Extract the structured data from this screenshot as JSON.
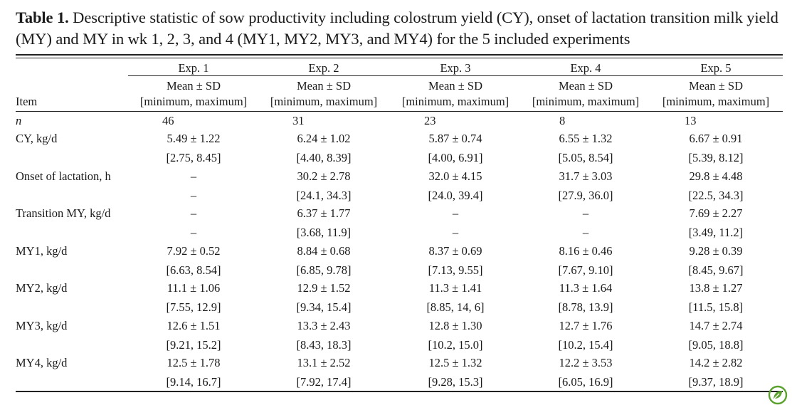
{
  "caption": {
    "label": "Table 1.",
    "text": " Descriptive statistic of sow productivity including colostrum yield (CY), onset of lactation transition milk yield (MY) and MY in wk 1, 2, 3, and 4 (MY1, MY2, MY3, and MY4) for the 5 included experiments"
  },
  "table": {
    "item_header": "Item",
    "experiments": [
      {
        "name": "Exp. 1",
        "stat_label": "Mean ± SD",
        "range_label": "[minimum, maximum]"
      },
      {
        "name": "Exp. 2",
        "stat_label": "Mean ± SD",
        "range_label": "[minimum, maximum]"
      },
      {
        "name": "Exp. 3",
        "stat_label": "Mean ± SD",
        "range_label": "[minimum, maximum]"
      },
      {
        "name": "Exp. 4",
        "stat_label": "Mean ± SD",
        "range_label": "[minimum, maximum]"
      },
      {
        "name": "Exp. 5",
        "stat_label": "Mean ± SD",
        "range_label": "[minimum, maximum]"
      }
    ],
    "n_row": {
      "label": "n",
      "values": [
        "46",
        "31",
        "23",
        "8",
        "13"
      ]
    },
    "rows": [
      {
        "label": "CY, kg/d",
        "mean": [
          "5.49 ± 1.22",
          "6.24 ± 1.02",
          "5.87 ± 0.74",
          "6.55 ± 1.32",
          "6.67 ± 0.91"
        ],
        "range": [
          "[2.75, 8.45]",
          "[4.40, 8.39]",
          "[4.00, 6.91]",
          "[5.05, 8.54]",
          "[5.39, 8.12]"
        ]
      },
      {
        "label": "Onset of lactation, h",
        "mean": [
          "–",
          "30.2 ± 2.78",
          "32.0 ± 4.15",
          "31.7 ± 3.03",
          "29.8 ± 4.48"
        ],
        "range": [
          "–",
          "[24.1, 34.3]",
          "[24.0, 39.4]",
          "[27.9, 36.0]",
          "[22.5, 34.3]"
        ]
      },
      {
        "label": "Transition MY, kg/d",
        "mean": [
          "–",
          "6.37 ± 1.77",
          "–",
          "–",
          "7.69 ± 2.27"
        ],
        "range": [
          "–",
          "[3.68, 11.9]",
          "–",
          "–",
          "[3.49, 11.2]"
        ]
      },
      {
        "label": "MY1, kg/d",
        "mean": [
          "7.92 ± 0.52",
          "8.84 ± 0.68",
          "8.37 ± 0.69",
          "8.16 ± 0.46",
          "9.28 ± 0.39"
        ],
        "range": [
          "[6.63, 8.54]",
          "[6.85, 9.78]",
          "[7.13, 9.55]",
          "[7.67, 9.10]",
          "[8.45, 9.67]"
        ]
      },
      {
        "label": "MY2, kg/d",
        "mean": [
          "11.1 ± 1.06",
          "12.9 ± 1.52",
          "11.3 ± 1.41",
          "11.3 ± 1.64",
          "13.8 ± 1.27"
        ],
        "range": [
          "[7.55, 12.9]",
          "[9.34, 15.4]",
          "[8.85, 14, 6]",
          "[8.78, 13.9]",
          "[11.5, 15.8]"
        ]
      },
      {
        "label": "MY3, kg/d",
        "mean": [
          "12.6 ± 1.51",
          "13.3 ± 2.43",
          "12.8 ± 1.30",
          "12.7 ± 1.76",
          "14.7 ± 2.74"
        ],
        "range": [
          "[9.21, 15.2]",
          "[8.43, 18.3]",
          "[10.2, 15.0]",
          "[10.2, 15.4]",
          "[9.05, 18.8]"
        ]
      },
      {
        "label": "MY4, kg/d",
        "mean": [
          "12.5 ± 1.78",
          "13.1 ± 2.52",
          "12.5 ± 1.32",
          "12.2 ± 3.53",
          "14.2 ± 2.82"
        ],
        "range": [
          "[9.14, 16.7]",
          "[7.92, 17.4]",
          "[9.28, 15.3]",
          "[6.05, 16.9]",
          "[9.37, 18.9]"
        ]
      }
    ]
  },
  "logo": {
    "icon": "leaf-logo-icon",
    "color": "#5aa22d"
  }
}
